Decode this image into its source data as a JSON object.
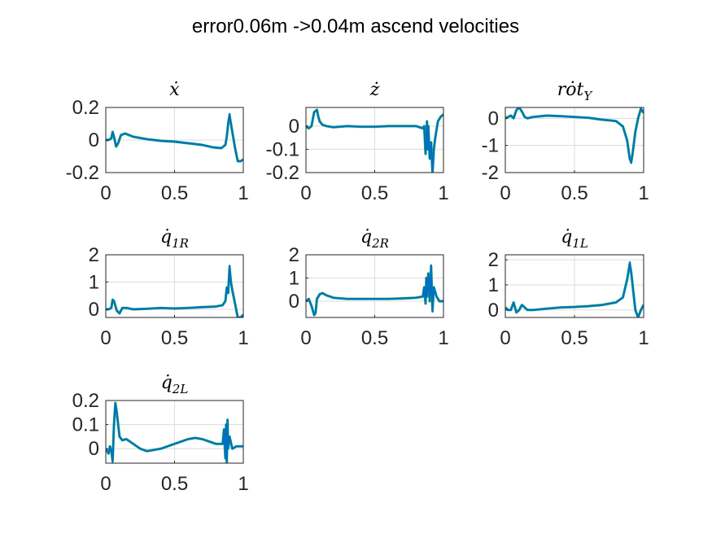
{
  "figure": {
    "title": "error0.06m ->0.04m ascend velocities"
  },
  "colors": {
    "series_measured": "#0072BD",
    "series_reference": "#3FCB63",
    "axes": "#262626",
    "grid": "#dcdcdc"
  },
  "chart_data": [
    {
      "type": "line",
      "title": "ẋ",
      "title_sub": "",
      "xlim": [
        0,
        1
      ],
      "ylim": [
        -0.2,
        0.2
      ],
      "xticks": [
        0,
        0.5,
        1
      ],
      "xticklabels": [
        "0",
        "0.5",
        "1"
      ],
      "yticks": [
        -0.2,
        0,
        0.2
      ],
      "yticklabels": [
        "-0.2",
        "0",
        "0.2"
      ],
      "grid": true,
      "x": [
        0,
        0.02,
        0.04,
        0.05,
        0.06,
        0.075,
        0.09,
        0.11,
        0.14,
        0.2,
        0.3,
        0.4,
        0.5,
        0.6,
        0.7,
        0.78,
        0.84,
        0.87,
        0.88,
        0.89,
        0.9,
        0.91,
        0.92,
        0.94,
        0.96,
        0.98,
        1.0
      ],
      "series": [
        {
          "values": [
            0,
            0.0,
            0.01,
            0.05,
            0.02,
            -0.04,
            -0.02,
            0.03,
            0.04,
            0.02,
            0.005,
            -0.005,
            -0.01,
            -0.02,
            -0.03,
            -0.045,
            -0.05,
            -0.03,
            0.02,
            0.1,
            0.15,
            0.1,
            0.05,
            -0.05,
            -0.13,
            -0.13,
            -0.12
          ]
        },
        {
          "values": [
            0,
            0.0,
            0.01,
            0.05,
            0.02,
            -0.04,
            -0.02,
            0.03,
            0.04,
            0.02,
            0.005,
            -0.005,
            -0.01,
            -0.02,
            -0.03,
            -0.045,
            -0.05,
            -0.03,
            0.02,
            0.1,
            0.16,
            0.1,
            0.05,
            -0.05,
            -0.13,
            -0.13,
            -0.12
          ]
        }
      ]
    },
    {
      "type": "line",
      "title": "ż",
      "title_sub": "",
      "xlim": [
        0,
        1
      ],
      "ylim": [
        -0.2,
        0.08
      ],
      "xticks": [
        0,
        0.5,
        1
      ],
      "xticklabels": [
        "0",
        "0.5",
        "1"
      ],
      "yticks": [
        -0.2,
        -0.1,
        0
      ],
      "yticklabels": [
        "-0.2",
        "-0.1",
        "0"
      ],
      "grid": true,
      "x": [
        0,
        0.02,
        0.04,
        0.06,
        0.08,
        0.09,
        0.1,
        0.12,
        0.15,
        0.2,
        0.3,
        0.4,
        0.5,
        0.6,
        0.7,
        0.8,
        0.85,
        0.86,
        0.87,
        0.88,
        0.885,
        0.89,
        0.9,
        0.91,
        0.92,
        0.93,
        0.94,
        0.96,
        0.98,
        1.0
      ],
      "series": [
        {
          "values": [
            0,
            -0.01,
            0.0,
            0.06,
            0.07,
            0.04,
            0.02,
            0.005,
            0.0,
            -0.005,
            0.0,
            -0.003,
            -0.003,
            0.0,
            0.0,
            0.0,
            -0.01,
            0.0,
            -0.12,
            0.02,
            -0.1,
            0.0,
            -0.14,
            -0.07,
            -0.2,
            -0.1,
            -0.05,
            0.02,
            0.04,
            0.05
          ]
        },
        {
          "values": [
            0,
            -0.01,
            0.0,
            0.06,
            0.07,
            0.04,
            0.02,
            0.005,
            0.0,
            -0.005,
            0.0,
            -0.003,
            -0.003,
            0.0,
            0.0,
            0.0,
            -0.01,
            0.0,
            -0.12,
            0.02,
            -0.1,
            0.0,
            -0.14,
            -0.07,
            -0.21,
            -0.1,
            -0.05,
            0.02,
            0.04,
            0.05
          ]
        }
      ]
    },
    {
      "type": "line",
      "title": "rȯt",
      "title_sub": "Y",
      "xlim": [
        0,
        1
      ],
      "ylim": [
        -2,
        0.4
      ],
      "xticks": [
        0,
        0.5,
        1
      ],
      "xticklabels": [
        "0",
        "0.5",
        "1"
      ],
      "yticks": [
        -2,
        -1,
        0
      ],
      "yticklabels": [
        "-2",
        "-1",
        "0"
      ],
      "grid": true,
      "x": [
        0,
        0.02,
        0.04,
        0.06,
        0.08,
        0.1,
        0.12,
        0.14,
        0.16,
        0.2,
        0.3,
        0.4,
        0.5,
        0.6,
        0.7,
        0.8,
        0.85,
        0.88,
        0.9,
        0.91,
        0.92,
        0.94,
        0.96,
        0.98,
        1.0
      ],
      "series": [
        {
          "values": [
            0,
            0.05,
            0.1,
            0.0,
            0.3,
            0.4,
            0.25,
            0.05,
            0.0,
            0.05,
            0.1,
            0.08,
            0.05,
            0.02,
            -0.05,
            -0.1,
            -0.3,
            -0.8,
            -1.5,
            -1.6,
            -1.3,
            -0.5,
            0.0,
            0.35,
            0.2
          ]
        },
        {
          "values": [
            0,
            0.05,
            0.1,
            0.0,
            0.3,
            0.4,
            0.25,
            0.05,
            0.0,
            0.05,
            0.1,
            0.08,
            0.05,
            0.02,
            -0.05,
            -0.1,
            -0.3,
            -0.8,
            -1.5,
            -1.65,
            -1.3,
            -0.5,
            0.0,
            0.35,
            0.2
          ]
        }
      ]
    },
    {
      "type": "line",
      "title": "q̇",
      "title_sub": "1R",
      "xlim": [
        0,
        1
      ],
      "ylim": [
        -0.3,
        2
      ],
      "xticks": [
        0,
        0.5,
        1
      ],
      "xticklabels": [
        "0",
        "0.5",
        "1"
      ],
      "yticks": [
        0,
        1,
        2
      ],
      "yticklabels": [
        "0",
        "1",
        "2"
      ],
      "grid": true,
      "x": [
        0,
        0.02,
        0.04,
        0.05,
        0.06,
        0.08,
        0.1,
        0.12,
        0.15,
        0.2,
        0.3,
        0.4,
        0.5,
        0.6,
        0.7,
        0.8,
        0.85,
        0.87,
        0.88,
        0.89,
        0.9,
        0.91,
        0.92,
        0.94,
        0.96,
        0.98,
        1.0
      ],
      "series": [
        {
          "values": [
            0,
            0.0,
            0.05,
            0.35,
            0.3,
            -0.05,
            -0.15,
            0.05,
            0.05,
            0.0,
            0.02,
            0.05,
            0.03,
            0.05,
            0.08,
            0.1,
            0.15,
            0.3,
            0.8,
            0.6,
            1.5,
            1.0,
            0.7,
            0.2,
            -0.3,
            -0.3,
            -0.2
          ]
        },
        {
          "values": [
            0,
            0.0,
            0.05,
            0.35,
            0.3,
            -0.05,
            -0.15,
            0.05,
            0.05,
            0.0,
            0.02,
            0.05,
            0.03,
            0.05,
            0.08,
            0.1,
            0.15,
            0.3,
            0.8,
            0.6,
            1.6,
            1.0,
            0.7,
            0.2,
            -0.3,
            -0.3,
            -0.2
          ]
        }
      ]
    },
    {
      "type": "line",
      "title": "q̇",
      "title_sub": "2R",
      "xlim": [
        0,
        1
      ],
      "ylim": [
        -0.7,
        2
      ],
      "xticks": [
        0,
        0.5,
        1
      ],
      "xticklabels": [
        "0",
        "0.5",
        "1"
      ],
      "yticks": [
        0,
        1,
        2
      ],
      "yticklabels": [
        "0",
        "1",
        "2"
      ],
      "grid": true,
      "x": [
        0,
        0.02,
        0.04,
        0.06,
        0.07,
        0.08,
        0.1,
        0.12,
        0.15,
        0.2,
        0.3,
        0.4,
        0.5,
        0.6,
        0.7,
        0.8,
        0.85,
        0.86,
        0.87,
        0.875,
        0.88,
        0.89,
        0.9,
        0.91,
        0.92,
        0.93,
        0.95,
        0.97,
        1.0
      ],
      "series": [
        {
          "values": [
            0,
            0.1,
            -0.2,
            -0.6,
            -0.5,
            0.1,
            0.3,
            0.35,
            0.25,
            0.15,
            0.1,
            0.1,
            0.1,
            0.1,
            0.12,
            0.15,
            0.2,
            0.6,
            -0.1,
            1.0,
            0.2,
            1.2,
            0.0,
            1.5,
            -0.4,
            0.6,
            0.2,
            0.0,
            0.0
          ]
        },
        {
          "values": [
            0,
            0.1,
            -0.2,
            -0.6,
            -0.5,
            0.1,
            0.3,
            0.35,
            0.25,
            0.15,
            0.1,
            0.1,
            0.1,
            0.1,
            0.12,
            0.15,
            0.2,
            0.6,
            -0.1,
            1.0,
            0.2,
            1.2,
            0.0,
            1.55,
            -0.45,
            0.6,
            0.2,
            0.0,
            0.0
          ]
        }
      ]
    },
    {
      "type": "line",
      "title": "q̇",
      "title_sub": "1L",
      "xlim": [
        0,
        1
      ],
      "ylim": [
        -0.3,
        2.2
      ],
      "xticks": [
        0,
        0.5,
        1
      ],
      "xticklabels": [
        "0",
        "0.5",
        "1"
      ],
      "yticks": [
        0,
        1,
        2
      ],
      "yticklabels": [
        "0",
        "1",
        "2"
      ],
      "grid": true,
      "x": [
        0,
        0.02,
        0.04,
        0.06,
        0.08,
        0.1,
        0.12,
        0.14,
        0.16,
        0.2,
        0.3,
        0.4,
        0.5,
        0.6,
        0.7,
        0.8,
        0.85,
        0.88,
        0.9,
        0.91,
        0.92,
        0.93,
        0.94,
        0.96,
        0.98,
        1.0
      ],
      "series": [
        {
          "values": [
            0.1,
            0.0,
            0.0,
            0.3,
            -0.1,
            0.0,
            0.2,
            0.1,
            0.0,
            0.0,
            0.05,
            0.1,
            0.12,
            0.15,
            0.2,
            0.3,
            0.5,
            1.2,
            1.8,
            1.5,
            1.0,
            0.5,
            0.0,
            -0.3,
            0.0,
            0.2
          ]
        },
        {
          "values": [
            0.1,
            0.0,
            0.0,
            0.3,
            -0.1,
            0.0,
            0.2,
            0.1,
            0.0,
            0.0,
            0.05,
            0.1,
            0.12,
            0.15,
            0.2,
            0.3,
            0.5,
            1.2,
            1.9,
            1.5,
            1.0,
            0.5,
            0.0,
            -0.3,
            0.0,
            0.2
          ]
        }
      ]
    },
    {
      "type": "line",
      "title": "q̇",
      "title_sub": "2L",
      "xlim": [
        0,
        1
      ],
      "ylim": [
        -0.06,
        0.2
      ],
      "xticks": [
        0,
        0.5,
        1
      ],
      "xticklabels": [
        "0",
        "0.5",
        "1"
      ],
      "yticks": [
        0,
        0.1,
        0.2
      ],
      "yticklabels": [
        "0",
        "0.1",
        "0.2"
      ],
      "grid": true,
      "x": [
        0,
        0.02,
        0.03,
        0.04,
        0.05,
        0.06,
        0.07,
        0.08,
        0.1,
        0.12,
        0.15,
        0.2,
        0.25,
        0.3,
        0.4,
        0.5,
        0.6,
        0.65,
        0.7,
        0.75,
        0.8,
        0.85,
        0.86,
        0.87,
        0.875,
        0.88,
        0.885,
        0.89,
        0.9,
        0.92,
        0.95,
        1.0
      ],
      "series": [
        {
          "values": [
            0.0,
            -0.02,
            0.01,
            -0.01,
            -0.05,
            0.1,
            0.19,
            0.15,
            0.05,
            0.035,
            0.04,
            0.02,
            0.0,
            -0.01,
            0.0,
            0.02,
            0.04,
            0.045,
            0.04,
            0.03,
            0.02,
            0.02,
            0.08,
            -0.04,
            0.1,
            -0.06,
            0.12,
            0.0,
            0.05,
            0.0,
            0.01,
            0.01
          ]
        },
        {
          "values": [
            0.0,
            -0.02,
            0.01,
            -0.01,
            -0.055,
            0.1,
            0.19,
            0.15,
            0.05,
            0.035,
            0.04,
            0.02,
            0.0,
            -0.01,
            0.0,
            0.02,
            0.04,
            0.045,
            0.04,
            0.03,
            0.02,
            0.02,
            0.08,
            -0.04,
            0.1,
            -0.06,
            0.12,
            0.0,
            0.05,
            0.0,
            0.01,
            0.01
          ]
        }
      ]
    }
  ]
}
